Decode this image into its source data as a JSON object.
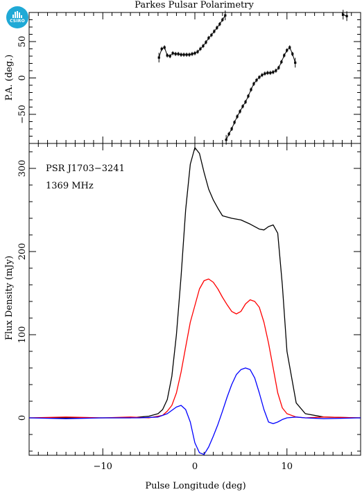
{
  "chart_data": [
    {
      "type": "scatter",
      "title": "Parkes Pulsar Polarimetry",
      "ylabel": "P.A. (deg.)",
      "xlim": [
        -18,
        18
      ],
      "ylim": [
        -90,
        90
      ],
      "y_ticks": [
        -50,
        0,
        50
      ],
      "series": [
        {
          "x": [
            -3.9,
            -3.6,
            -3.3,
            -3.0,
            -2.7,
            -2.4,
            -2.1,
            -1.8,
            -1.5,
            -1.2,
            -0.9,
            -0.6,
            -0.3,
            0.0,
            0.3,
            0.6,
            0.9,
            1.2,
            1.5,
            1.8,
            2.1,
            2.4,
            2.7,
            3.0,
            3.3
          ],
          "y": [
            28,
            40,
            42,
            31,
            30,
            34,
            33,
            33,
            32,
            32,
            32,
            32,
            33,
            34,
            36,
            40,
            44,
            49,
            55,
            59,
            64,
            69,
            74,
            80,
            86
          ]
        },
        {
          "x": [
            3.4,
            3.7,
            4.0,
            4.3,
            4.6,
            4.9,
            5.2,
            5.5,
            5.8,
            6.1,
            6.4,
            6.7,
            7.0,
            7.3,
            7.6,
            7.9,
            8.2,
            8.5,
            8.8,
            9.1,
            9.4,
            9.7,
            10.0,
            10.3,
            10.6,
            10.9
          ],
          "y": [
            -85,
            -77,
            -70,
            -61,
            -53,
            -46,
            -39,
            -33,
            -25,
            -16,
            -8,
            -3,
            1,
            4,
            6,
            7,
            7,
            8,
            10,
            14,
            22,
            31,
            38,
            42,
            33,
            21
          ]
        },
        {
          "x": [
            16.1,
            16.5
          ],
          "y": [
            87,
            85
          ]
        }
      ]
    },
    {
      "type": "line",
      "xlabel": "Pulse Longitude (deg)",
      "ylabel": "Flux Density (mJy)",
      "xlim": [
        -18,
        18
      ],
      "ylim": [
        -45,
        330
      ],
      "x_ticks": [
        -10,
        0,
        10
      ],
      "y_ticks": [
        0,
        100,
        200,
        300
      ],
      "annotations": [
        "PSR J1703−3241",
        "1369 MHz"
      ],
      "series": [
        {
          "color": "#000000",
          "x": [
            -18,
            -14,
            -10,
            -7,
            -6,
            -5,
            -4,
            -3.5,
            -3,
            -2.5,
            -2,
            -1.5,
            -1,
            -0.5,
            0,
            0.5,
            1,
            1.5,
            2,
            2.5,
            3,
            4,
            5,
            6,
            7,
            7.5,
            8,
            8.5,
            9,
            9.5,
            10,
            11,
            12,
            14,
            18
          ],
          "y": [
            0,
            0,
            0,
            0,
            1,
            2,
            5,
            10,
            22,
            50,
            100,
            170,
            250,
            305,
            325,
            318,
            295,
            275,
            262,
            252,
            243,
            240,
            238,
            233,
            227,
            226,
            230,
            232,
            222,
            160,
            80,
            18,
            5,
            1,
            0
          ]
        },
        {
          "color": "#ff0000",
          "x": [
            -18,
            -14,
            -10,
            -7,
            -5,
            -4,
            -3.5,
            -3,
            -2.5,
            -2,
            -1.5,
            -1,
            -0.5,
            0,
            0.5,
            1,
            1.5,
            2,
            2.5,
            3,
            3.5,
            4,
            4.5,
            5,
            5.5,
            6,
            6.5,
            7,
            7.5,
            8,
            8.5,
            9,
            9.5,
            10,
            11,
            12,
            14,
            18
          ],
          "y": [
            0,
            1,
            0,
            1,
            0,
            2,
            3,
            8,
            15,
            30,
            55,
            85,
            115,
            135,
            155,
            165,
            167,
            163,
            155,
            145,
            136,
            128,
            125,
            128,
            137,
            142,
            140,
            133,
            115,
            90,
            60,
            30,
            12,
            5,
            1,
            0,
            1,
            0
          ]
        },
        {
          "color": "#0000ff",
          "x": [
            -18,
            -14,
            -10,
            -6,
            -4,
            -3,
            -2,
            -1.5,
            -1,
            -0.5,
            0,
            0.5,
            1,
            1.5,
            2,
            2.5,
            3,
            3.5,
            4,
            4.5,
            5,
            5.5,
            6,
            6.5,
            7,
            7.5,
            8,
            8.5,
            9,
            9.5,
            10,
            11,
            12,
            14,
            18
          ],
          "y": [
            0,
            -1,
            0,
            0,
            1,
            5,
            13,
            15,
            10,
            -5,
            -30,
            -42,
            -44,
            -35,
            -22,
            -8,
            8,
            25,
            40,
            52,
            58,
            60,
            58,
            48,
            30,
            10,
            -5,
            -7,
            -5,
            -2,
            0,
            1,
            0,
            -1,
            0
          ]
        }
      ]
    }
  ]
}
